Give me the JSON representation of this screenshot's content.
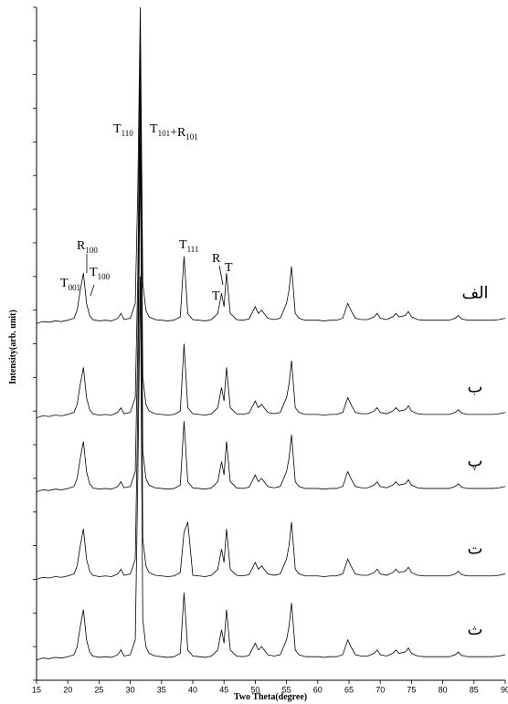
{
  "chart_data": {
    "type": "line",
    "xlabel": "Two Theta(degree)",
    "ylabel": "Intensity(arb. unit)",
    "xlim": [
      15,
      90
    ],
    "xticks": [
      15,
      20,
      25,
      30,
      35,
      40,
      45,
      50,
      55,
      60,
      65,
      70,
      75,
      80,
      85,
      90
    ],
    "ylim": [
      0,
      100
    ],
    "yticks": [
      0,
      5,
      10,
      15,
      20,
      25,
      30,
      35,
      40,
      45,
      50,
      55,
      60,
      65,
      70,
      75,
      80,
      85,
      90,
      95,
      100
    ],
    "x": [
      15,
      16,
      17,
      18,
      19,
      20,
      21,
      21.5,
      22,
      22.5,
      23,
      23.5,
      24,
      25,
      26,
      27,
      28,
      28.5,
      29,
      30,
      30.8,
      31.2,
      31.6,
      32,
      32.5,
      33,
      34,
      35,
      36,
      37,
      38,
      38.6,
      39.2,
      40,
      41,
      42,
      43,
      44,
      44.6,
      45,
      45.4,
      46,
      47,
      48,
      49,
      50,
      50.5,
      51,
      52,
      53,
      54,
      55,
      55.4,
      55.8,
      56.4,
      57,
      58,
      59,
      60,
      61,
      62,
      63,
      64,
      64.8,
      65.3,
      66,
      67,
      68,
      69,
      69.5,
      70,
      71,
      72,
      72.5,
      73,
      74,
      74.5,
      75,
      76,
      77,
      78,
      79,
      80,
      81,
      82,
      82.5,
      83,
      84,
      85,
      86,
      87,
      88,
      89,
      90
    ],
    "series": [
      {
        "name": "الف",
        "color": "#000000",
        "values": [
          53,
          53.3,
          53.2,
          53.4,
          53.3,
          53.5,
          53.8,
          55,
          58,
          60.5,
          56,
          54.2,
          53.6,
          53.4,
          53.5,
          53.4,
          53.8,
          54.5,
          53.6,
          53.8,
          56,
          73,
          100,
          59,
          55,
          54,
          53.6,
          53.5,
          53.4,
          53.5,
          54,
          63,
          54.5,
          53.6,
          53.5,
          53.4,
          53.6,
          54.5,
          57.5,
          55.5,
          60.5,
          54.5,
          53.6,
          53.5,
          53.7,
          55.5,
          54.5,
          55,
          53.8,
          53.6,
          53.8,
          56,
          58,
          61.5,
          54.5,
          53.8,
          53.5,
          53.5,
          53.5,
          53.4,
          53.5,
          53.5,
          53.8,
          56,
          55,
          53.8,
          53.6,
          53.6,
          54,
          54.5,
          53.8,
          53.6,
          54,
          54.5,
          54,
          54.2,
          54.8,
          54,
          53.6,
          53.5,
          53.5,
          53.5,
          53.5,
          53.5,
          53.8,
          54.2,
          53.7,
          53.5,
          53.5,
          53.5,
          53.5,
          53.5,
          53.6,
          53.8
        ]
      },
      {
        "name": "ب",
        "color": "#000000",
        "values": [
          39,
          39.3,
          39.2,
          39.4,
          39.3,
          39.5,
          39.8,
          41,
          44,
          46.5,
          42,
          40.2,
          39.6,
          39.4,
          39.5,
          39.4,
          39.8,
          40.5,
          39.6,
          39.8,
          42,
          60,
          95,
          45,
          41,
          40,
          39.6,
          39.5,
          39.4,
          39.5,
          40,
          50,
          40.5,
          39.6,
          39.5,
          39.4,
          39.6,
          40.5,
          43.5,
          41.5,
          46.5,
          40.5,
          39.6,
          39.5,
          39.7,
          41.5,
          40.5,
          41,
          39.8,
          39.6,
          39.8,
          42,
          44,
          47.5,
          40.5,
          39.8,
          39.5,
          39.5,
          39.5,
          39.4,
          39.5,
          39.5,
          39.8,
          42,
          41,
          39.8,
          39.6,
          39.6,
          40,
          40.5,
          39.8,
          39.6,
          40,
          40.5,
          40,
          40.2,
          40.8,
          40,
          39.6,
          39.5,
          39.5,
          39.5,
          39.5,
          39.5,
          39.8,
          40.2,
          39.7,
          39.5,
          39.5,
          39.5,
          39.5,
          39.5,
          39.6,
          39.8
        ]
      },
      {
        "name": "پ",
        "color": "#000000",
        "values": [
          28,
          28.3,
          28.2,
          28.4,
          28.3,
          28.5,
          28.8,
          30,
          33,
          35.5,
          31,
          29.2,
          28.6,
          28.4,
          28.5,
          28.4,
          28.8,
          29.5,
          28.6,
          28.8,
          31,
          50,
          88,
          34,
          30,
          29,
          28.6,
          28.5,
          28.4,
          28.5,
          29,
          38.5,
          29.5,
          28.6,
          28.5,
          28.4,
          28.6,
          29.5,
          32.5,
          30.5,
          35.5,
          29.5,
          28.6,
          28.5,
          28.7,
          30.5,
          29.5,
          30,
          28.8,
          28.6,
          28.8,
          31,
          33,
          36.5,
          29.5,
          28.8,
          28.5,
          28.5,
          28.5,
          28.4,
          28.5,
          28.5,
          28.8,
          31,
          30,
          28.8,
          28.6,
          28.6,
          29,
          29.5,
          28.8,
          28.6,
          29,
          29.5,
          29,
          29.2,
          29.8,
          29,
          28.6,
          28.5,
          28.5,
          28.5,
          28.5,
          28.5,
          28.8,
          29.2,
          28.7,
          28.5,
          28.5,
          28.5,
          28.5,
          28.5,
          28.6,
          28.8
        ]
      },
      {
        "name": "ت",
        "color": "#000000",
        "values": [
          15,
          15.3,
          15.2,
          15.4,
          15.3,
          15.5,
          15.8,
          17,
          20,
          22.5,
          18,
          16.2,
          15.6,
          15.4,
          15.5,
          15.4,
          15.8,
          16.5,
          15.6,
          15.8,
          18,
          40,
          80,
          21,
          17,
          16,
          15.6,
          15.5,
          15.4,
          15.5,
          16,
          22,
          23.5,
          15.6,
          15.5,
          15.4,
          15.6,
          16.5,
          19.5,
          17.5,
          22.5,
          16.5,
          15.6,
          15.5,
          15.7,
          17.5,
          16.5,
          17,
          15.8,
          15.6,
          15.8,
          18,
          20,
          23.5,
          16.5,
          15.8,
          15.5,
          15.5,
          15.5,
          15.4,
          15.5,
          15.5,
          15.8,
          18,
          17,
          15.8,
          15.6,
          15.6,
          16,
          16.5,
          15.8,
          15.6,
          16,
          16.5,
          16,
          16.2,
          16.8,
          16,
          15.6,
          15.5,
          15.5,
          15.5,
          15.5,
          15.5,
          15.8,
          16.2,
          15.7,
          15.5,
          15.5,
          15.5,
          15.5,
          15.5,
          15.6,
          15.8
        ]
      },
      {
        "name": "ث",
        "color": "#000000",
        "values": [
          3,
          3.3,
          3.2,
          3.4,
          3.3,
          3.5,
          3.8,
          5,
          8,
          10.5,
          6,
          4.2,
          3.6,
          3.4,
          3.5,
          3.4,
          3.8,
          4.5,
          3.6,
          3.8,
          6,
          30,
          60,
          9,
          5,
          4,
          3.6,
          3.5,
          3.4,
          3.5,
          4,
          13,
          4.5,
          3.6,
          3.5,
          3.4,
          3.6,
          4.5,
          7.5,
          5.5,
          10.5,
          4.5,
          3.6,
          3.5,
          3.7,
          5.5,
          4.5,
          5,
          3.8,
          3.6,
          3.8,
          6,
          8,
          11.5,
          4.5,
          3.8,
          3.5,
          3.5,
          3.5,
          3.4,
          3.5,
          3.5,
          3.8,
          6,
          5,
          3.8,
          3.6,
          3.6,
          4,
          4.5,
          3.8,
          3.6,
          4,
          4.5,
          4,
          4.2,
          4.8,
          4,
          3.6,
          3.5,
          3.5,
          3.5,
          3.5,
          3.5,
          3.8,
          4.2,
          3.7,
          3.5,
          3.5,
          3.5,
          3.5,
          3.5,
          3.6,
          3.8
        ]
      }
    ],
    "annotations": [
      {
        "parts": [
          {
            "text": "T",
            "sub": "110"
          }
        ]
      },
      {
        "parts": [
          {
            "text": "T",
            "sub": "101"
          },
          {
            "text": "+R",
            "sub": "101"
          }
        ]
      },
      {
        "parts": [
          {
            "text": "T",
            "sub": "111"
          }
        ]
      },
      {
        "parts": [
          {
            "text": "R",
            "sub": "100"
          }
        ]
      },
      {
        "parts": [
          {
            "text": "T",
            "sub": "100"
          }
        ]
      },
      {
        "parts": [
          {
            "text": "T",
            "sub": "001"
          }
        ]
      },
      {
        "parts": [
          {
            "text": "R"
          }
        ]
      },
      {
        "parts": [
          {
            "text": "T"
          }
        ]
      },
      {
        "parts": [
          {
            "text": "T"
          }
        ]
      }
    ]
  }
}
